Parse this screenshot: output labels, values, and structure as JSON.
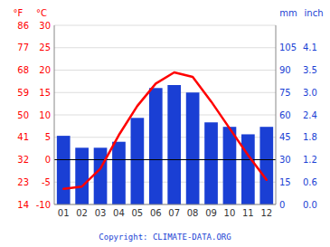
{
  "chart_data": {
    "type": "bar",
    "categories": [
      "01",
      "02",
      "03",
      "04",
      "05",
      "06",
      "07",
      "08",
      "09",
      "10",
      "11",
      "12"
    ],
    "series": [
      {
        "type": "bar",
        "axis": "y2",
        "color": "#1a3fd4",
        "values": [
          46,
          38,
          38,
          42,
          58,
          78,
          80,
          75,
          55,
          52,
          47,
          52
        ]
      },
      {
        "type": "line",
        "axis": "y",
        "color": "#ff0000",
        "values": [
          -6.5,
          -6.0,
          -2.0,
          5.5,
          12.0,
          17.0,
          19.5,
          18.5,
          13.0,
          7.0,
          1.0,
          -4.5
        ]
      }
    ],
    "ylabel": "°C",
    "ylabel_secondary": "°F",
    "y2label": "mm",
    "y2label_secondary": "inch",
    "ylim": [
      -10,
      30
    ],
    "yticks": [
      -10,
      -5,
      0,
      5,
      10,
      15,
      20,
      25,
      30
    ],
    "yticks_secondary": [
      {
        "value": -10,
        "label": "14"
      },
      {
        "value": -5,
        "label": "23"
      },
      {
        "value": 0,
        "label": "32"
      },
      {
        "value": 5,
        "label": "41"
      },
      {
        "value": 10,
        "label": "50"
      },
      {
        "value": 15,
        "label": "59"
      },
      {
        "value": 20,
        "label": "68"
      },
      {
        "value": 25,
        "label": "77"
      },
      {
        "value": 30,
        "label": "86"
      }
    ],
    "y2lim": [
      0,
      120
    ],
    "y2ticks": [
      0,
      15,
      30,
      45,
      60,
      75,
      90,
      105
    ],
    "y2ticks_secondary": [
      {
        "value": 0,
        "label": "0.0"
      },
      {
        "value": 15,
        "label": "0.6"
      },
      {
        "value": 30,
        "label": "1.2"
      },
      {
        "value": 45,
        "label": "1.8"
      },
      {
        "value": 60,
        "label": "2.4"
      },
      {
        "value": 75,
        "label": "3.0"
      },
      {
        "value": 90,
        "label": "3.5"
      },
      {
        "value": 105,
        "label": "4.1"
      }
    ],
    "hlines": [
      {
        "value": 0,
        "color": "#000000"
      }
    ],
    "grid": true,
    "annotations": [
      "Copyright: CLIMATE-DATA.ORG"
    ]
  }
}
